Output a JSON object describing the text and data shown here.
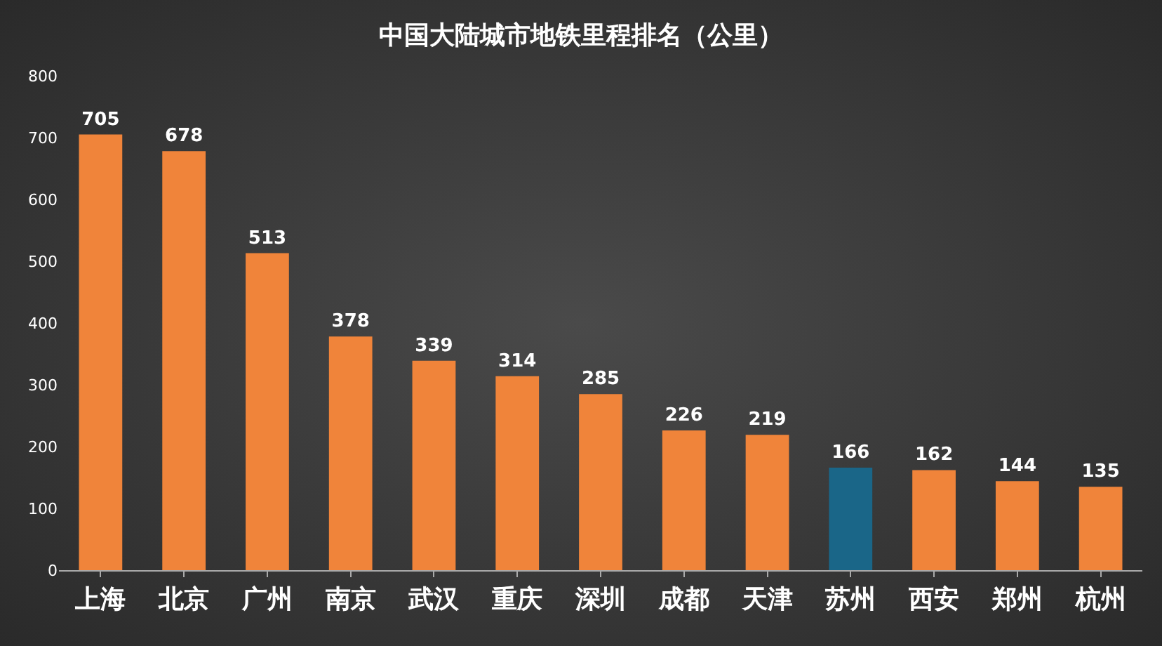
{
  "chart_data": {
    "type": "bar",
    "title": "中国大陆城市地铁里程排名（公里）",
    "categories": [
      "上海",
      "北京",
      "广州",
      "南京",
      "武汉",
      "重庆",
      "深圳",
      "成都",
      "天津",
      "苏州",
      "西安",
      "郑州",
      "杭州"
    ],
    "values": [
      705,
      678,
      513,
      378,
      339,
      314,
      285,
      226,
      219,
      166,
      162,
      144,
      135
    ],
    "colors": [
      "#f0843a",
      "#f0843a",
      "#f0843a",
      "#f0843a",
      "#f0843a",
      "#f0843a",
      "#f0843a",
      "#f0843a",
      "#f0843a",
      "#1a6688",
      "#f0843a",
      "#f0843a",
      "#f0843a"
    ],
    "ylim": [
      0,
      800
    ],
    "yticks": [
      0,
      100,
      200,
      300,
      400,
      500,
      600,
      700,
      800
    ],
    "grid": false,
    "data_labels": true
  }
}
